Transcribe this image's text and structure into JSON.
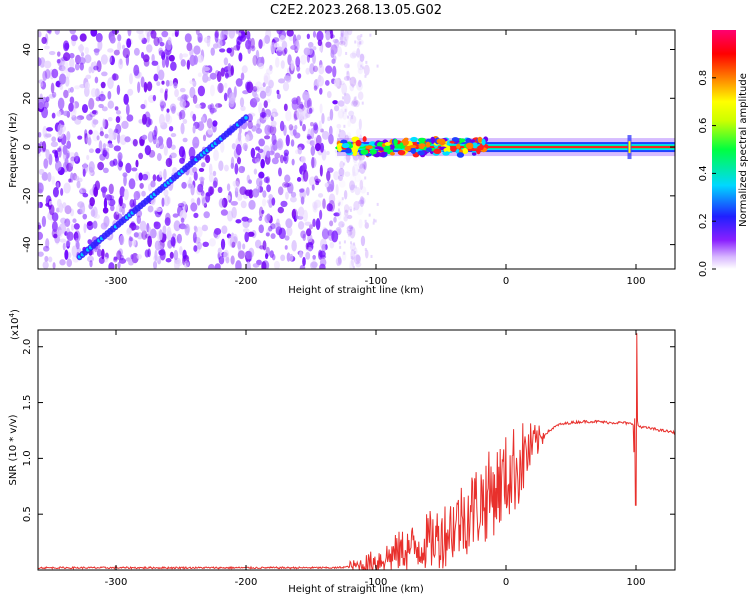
{
  "figure": {
    "title": "C2E2.2023.268.13.05.G02"
  },
  "chart_data": [
    {
      "type": "heatmap",
      "title": "",
      "xlabel": "Height of straight line (km)",
      "ylabel": "Frequency (Hz)",
      "xlim": [
        -360,
        130
      ],
      "ylim": [
        -50,
        48
      ],
      "xticks": [
        -300,
        -200,
        -100,
        0,
        100
      ],
      "yticks": [
        -40,
        -20,
        0,
        20,
        40
      ],
      "description_series": {
        "noise_region_km": [
          -360,
          -130
        ],
        "diagonal_trace": {
          "x": [
            -328,
            -200
          ],
          "y": [
            -45,
            12
          ]
        },
        "tone_region_km": [
          -130,
          130
        ],
        "tone_frequency_hz": 0,
        "spike_at_km": 95
      },
      "colorbar": {
        "label": "Normalized spectral amplitude",
        "ticks": [
          0.0,
          0.2,
          0.4,
          0.6,
          0.8
        ],
        "range": [
          0,
          1
        ],
        "colors": [
          "#ffffff",
          "#c9a6ff",
          "#7a00ff",
          "#2020ff",
          "#00e0ff",
          "#00ff40",
          "#ffff00",
          "#ff8000",
          "#ff0000",
          "#ff0066"
        ]
      }
    },
    {
      "type": "line",
      "title": "",
      "xlabel": "Height of straight line (km)",
      "ylabel": "SNR (10 * v/v)",
      "scale_label": "(x10",
      "scale_exponent": "4",
      "xlim": [
        -360,
        130
      ],
      "ylim": [
        0,
        2.15
      ],
      "xticks": [
        -300,
        -200,
        -100,
        0,
        100
      ],
      "yticks": [
        0.5,
        1.0,
        1.5,
        2.0
      ],
      "ytick_labels": [
        "0.5",
        "1.0",
        "1.5",
        "2.0"
      ],
      "series": [
        {
          "name": "SNR",
          "color": "#e8302c",
          "x": [
            -360,
            -300,
            -200,
            -130,
            -110,
            -100,
            -90,
            -80,
            -70,
            -60,
            -50,
            -40,
            -30,
            -20,
            -10,
            0,
            10,
            20,
            30,
            40,
            50,
            60,
            70,
            80,
            90,
            95,
            98,
            100,
            102,
            105,
            110,
            120,
            130
          ],
          "y": [
            0.02,
            0.02,
            0.02,
            0.02,
            0.04,
            0.08,
            0.12,
            0.18,
            0.2,
            0.26,
            0.3,
            0.4,
            0.5,
            0.6,
            0.7,
            0.82,
            0.95,
            1.1,
            1.22,
            1.3,
            1.32,
            1.33,
            1.33,
            1.32,
            1.32,
            1.31,
            1.31,
            1.3,
            1.29,
            1.28,
            1.27,
            1.25,
            1.23
          ],
          "spike": {
            "x": 100,
            "max": 2.12,
            "min": 0.58
          }
        }
      ]
    }
  ]
}
